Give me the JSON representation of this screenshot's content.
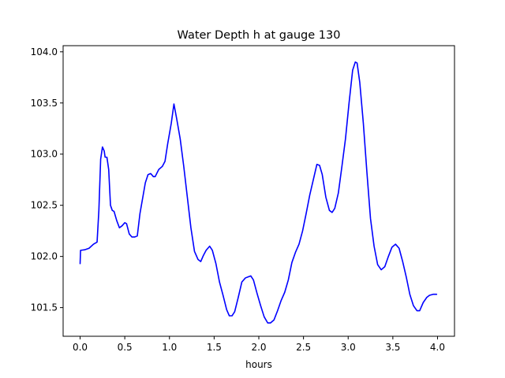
{
  "chart_data": {
    "type": "line",
    "title": "Water Depth h at gauge 130",
    "xlabel": "hours",
    "ylabel": "",
    "xlim": [
      -0.19,
      4.19
    ],
    "ylim": [
      101.22,
      104.06
    ],
    "xticks": [
      0.0,
      0.5,
      1.0,
      1.5,
      2.0,
      2.5,
      3.0,
      3.5,
      4.0
    ],
    "xtick_labels": [
      "0.0",
      "0.5",
      "1.0",
      "1.5",
      "2.0",
      "2.5",
      "3.0",
      "3.5",
      "4.0"
    ],
    "yticks": [
      101.5,
      102.0,
      102.5,
      103.0,
      103.5,
      104.0
    ],
    "ytick_labels": [
      "101.5",
      "102.0",
      "102.5",
      "103.0",
      "103.5",
      "104.0"
    ],
    "grid": false,
    "legend": "none",
    "series": [
      {
        "color": "#0000ff",
        "points": [
          [
            0.0,
            101.93
          ],
          [
            0.005,
            102.06
          ],
          [
            0.05,
            102.065
          ],
          [
            0.1,
            102.08
          ],
          [
            0.15,
            102.12
          ],
          [
            0.19,
            102.14
          ],
          [
            0.21,
            102.45
          ],
          [
            0.23,
            102.95
          ],
          [
            0.25,
            103.07
          ],
          [
            0.27,
            103.03
          ],
          [
            0.28,
            102.97
          ],
          [
            0.3,
            102.97
          ],
          [
            0.32,
            102.85
          ],
          [
            0.34,
            102.5
          ],
          [
            0.36,
            102.45
          ],
          [
            0.38,
            102.44
          ],
          [
            0.41,
            102.35
          ],
          [
            0.44,
            102.28
          ],
          [
            0.47,
            102.3
          ],
          [
            0.5,
            102.33
          ],
          [
            0.52,
            102.32
          ],
          [
            0.55,
            102.22
          ],
          [
            0.58,
            102.19
          ],
          [
            0.61,
            102.19
          ],
          [
            0.64,
            102.2
          ],
          [
            0.67,
            102.42
          ],
          [
            0.7,
            102.57
          ],
          [
            0.73,
            102.72
          ],
          [
            0.76,
            102.8
          ],
          [
            0.79,
            102.81
          ],
          [
            0.82,
            102.78
          ],
          [
            0.84,
            102.78
          ],
          [
            0.88,
            102.85
          ],
          [
            0.92,
            102.88
          ],
          [
            0.95,
            102.93
          ],
          [
            0.98,
            103.1
          ],
          [
            1.02,
            103.3
          ],
          [
            1.05,
            103.49
          ],
          [
            1.08,
            103.35
          ],
          [
            1.12,
            103.15
          ],
          [
            1.16,
            102.88
          ],
          [
            1.2,
            102.58
          ],
          [
            1.24,
            102.28
          ],
          [
            1.28,
            102.05
          ],
          [
            1.32,
            101.97
          ],
          [
            1.35,
            101.95
          ],
          [
            1.38,
            102.01
          ],
          [
            1.41,
            102.06
          ],
          [
            1.45,
            102.1
          ],
          [
            1.48,
            102.06
          ],
          [
            1.52,
            101.93
          ],
          [
            1.56,
            101.75
          ],
          [
            1.6,
            101.62
          ],
          [
            1.64,
            101.48
          ],
          [
            1.67,
            101.42
          ],
          [
            1.7,
            101.42
          ],
          [
            1.73,
            101.46
          ],
          [
            1.77,
            101.6
          ],
          [
            1.81,
            101.75
          ],
          [
            1.85,
            101.79
          ],
          [
            1.88,
            101.8
          ],
          [
            1.91,
            101.81
          ],
          [
            1.94,
            101.77
          ],
          [
            1.98,
            101.64
          ],
          [
            2.02,
            101.52
          ],
          [
            2.06,
            101.41
          ],
          [
            2.1,
            101.35
          ],
          [
            2.13,
            101.35
          ],
          [
            2.17,
            101.38
          ],
          [
            2.21,
            101.47
          ],
          [
            2.25,
            101.57
          ],
          [
            2.29,
            101.65
          ],
          [
            2.33,
            101.77
          ],
          [
            2.37,
            101.94
          ],
          [
            2.41,
            102.04
          ],
          [
            2.45,
            102.12
          ],
          [
            2.49,
            102.25
          ],
          [
            2.53,
            102.42
          ],
          [
            2.57,
            102.6
          ],
          [
            2.61,
            102.75
          ],
          [
            2.65,
            102.9
          ],
          [
            2.68,
            102.89
          ],
          [
            2.71,
            102.8
          ],
          [
            2.75,
            102.58
          ],
          [
            2.79,
            102.45
          ],
          [
            2.82,
            102.43
          ],
          [
            2.85,
            102.47
          ],
          [
            2.89,
            102.62
          ],
          [
            2.93,
            102.88
          ],
          [
            2.97,
            103.15
          ],
          [
            3.01,
            103.5
          ],
          [
            3.05,
            103.82
          ],
          [
            3.08,
            103.9
          ],
          [
            3.1,
            103.89
          ],
          [
            3.13,
            103.7
          ],
          [
            3.17,
            103.3
          ],
          [
            3.21,
            102.82
          ],
          [
            3.25,
            102.37
          ],
          [
            3.29,
            102.1
          ],
          [
            3.33,
            101.92
          ],
          [
            3.37,
            101.87
          ],
          [
            3.41,
            101.9
          ],
          [
            3.45,
            102.0
          ],
          [
            3.49,
            102.09
          ],
          [
            3.53,
            102.12
          ],
          [
            3.57,
            102.08
          ],
          [
            3.61,
            101.95
          ],
          [
            3.65,
            101.8
          ],
          [
            3.69,
            101.63
          ],
          [
            3.73,
            101.52
          ],
          [
            3.77,
            101.47
          ],
          [
            3.8,
            101.47
          ],
          [
            3.84,
            101.55
          ],
          [
            3.88,
            101.6
          ],
          [
            3.91,
            101.62
          ],
          [
            3.95,
            101.63
          ],
          [
            3.99,
            101.63
          ]
        ]
      }
    ]
  }
}
